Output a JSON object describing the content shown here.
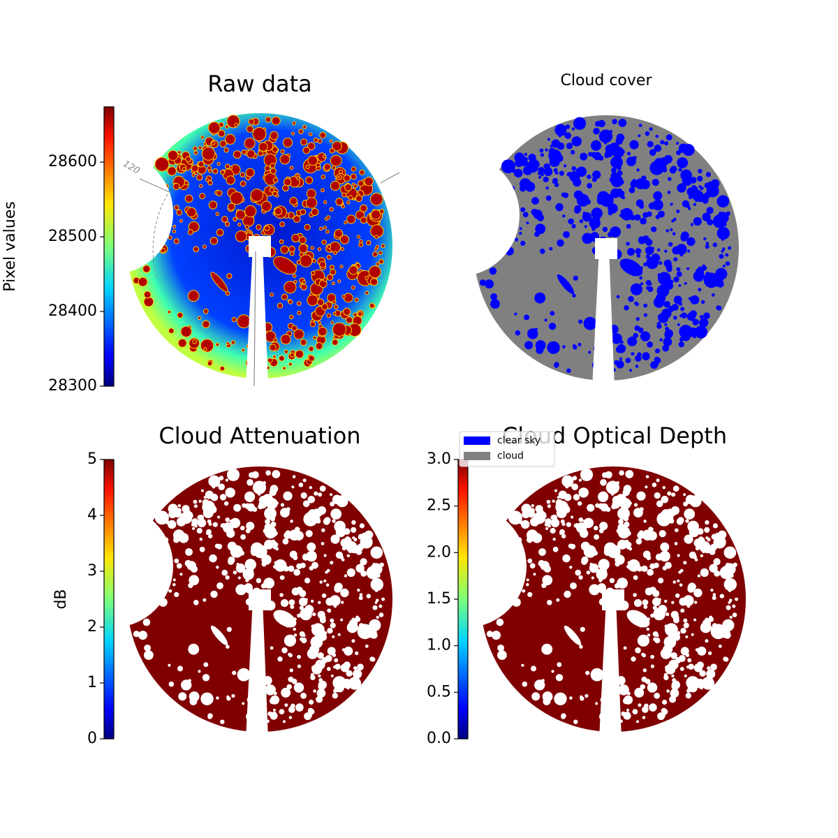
{
  "chart_data": [
    {
      "type": "image",
      "title": "Raw data",
      "colormap": "jet",
      "ylabel": "Pixel values",
      "ylim": [
        28300,
        28674
      ],
      "yticks": [
        28300,
        28400,
        28500,
        28600
      ],
      "annotation": "120"
    },
    {
      "type": "image",
      "title": "Cloud cover",
      "legend": [
        {
          "name": "clear sky",
          "color": "#0000ff"
        },
        {
          "name": "cloud",
          "color": "#808080"
        }
      ]
    },
    {
      "type": "image",
      "title": "Cloud Attenuation",
      "colormap": "jet",
      "ylabel": "dB",
      "ylim": [
        0,
        5
      ],
      "yticks": [
        0,
        1,
        2,
        3,
        4,
        5
      ]
    },
    {
      "type": "image",
      "title": "Cloud Optical Depth",
      "colormap": "jet",
      "ylim": [
        0,
        3
      ],
      "yticks": [
        {
          "value": 0,
          "label": "0.0"
        },
        {
          "value": 0.5,
          "label": "0.5"
        },
        {
          "value": 1,
          "label": "1.0"
        },
        {
          "value": 1.5,
          "label": "1.5"
        },
        {
          "value": 2,
          "label": "2.0"
        },
        {
          "value": 2.5,
          "label": "2.5"
        },
        {
          "value": 3,
          "label": "3.0"
        }
      ]
    }
  ]
}
